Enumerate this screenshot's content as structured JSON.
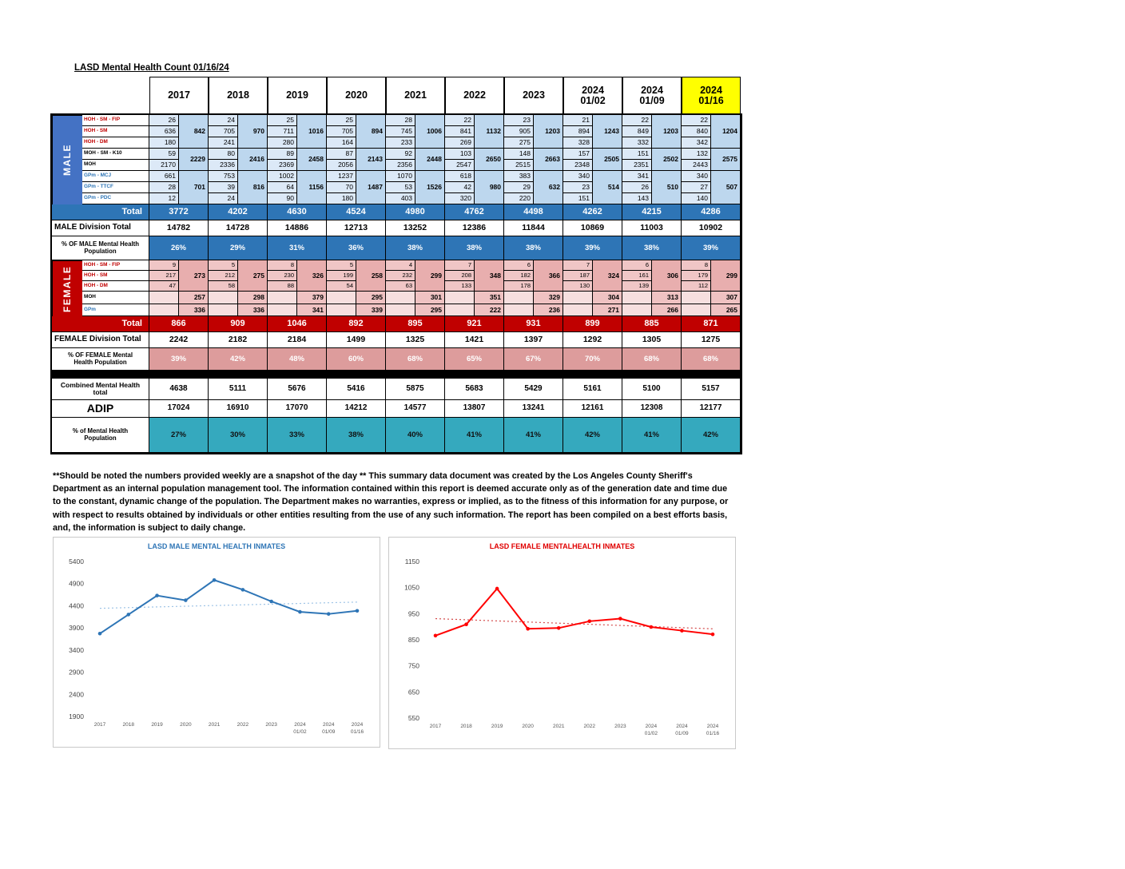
{
  "title": "LASD Mental Health Count 01/16/24",
  "table": {
    "columns": [
      "2017",
      "2018",
      "2019",
      "2020",
      "2021",
      "2022",
      "2023",
      "2024\n01/02",
      "2024\n01/09",
      "2024\n01/16"
    ],
    "highlighted_column": "2024\n01/16",
    "male": {
      "label": "MALE",
      "groups": [
        {
          "rows": [
            {
              "label": "HOH - SM - FIP",
              "values": [
                26,
                24,
                25,
                25,
                28,
                22,
                23,
                21,
                22,
                22
              ]
            },
            {
              "label": "HOH - SM",
              "values": [
                636,
                705,
                711,
                705,
                745,
                841,
                905,
                894,
                849,
                840
              ]
            },
            {
              "label": "HOH - DM",
              "values": [
                180,
                241,
                280,
                164,
                233,
                269,
                275,
                328,
                332,
                342
              ]
            }
          ],
          "subtotals": [
            842,
            970,
            1016,
            894,
            1006,
            1132,
            1203,
            1243,
            1203,
            1204
          ]
        },
        {
          "rows": [
            {
              "label": "MOH - SM - K10",
              "values": [
                59,
                80,
                89,
                87,
                92,
                103,
                148,
                157,
                151,
                132
              ]
            },
            {
              "label": "MOH",
              "values": [
                2170,
                2336,
                2369,
                2056,
                2356,
                2547,
                2515,
                2348,
                2351,
                2443
              ]
            }
          ],
          "subtotals": [
            2229,
            2416,
            2458,
            2143,
            2448,
            2650,
            2663,
            2505,
            2502,
            2575
          ]
        },
        {
          "rows": [
            {
              "label": "GPm - MCJ",
              "values": [
                661,
                753,
                1002,
                1237,
                1070,
                618,
                383,
                340,
                341,
                340
              ]
            },
            {
              "label": "GPm - TTCF",
              "values": [
                28,
                39,
                64,
                70,
                53,
                42,
                29,
                23,
                26,
                27
              ]
            },
            {
              "label": "GPm - PDC",
              "values": [
                12,
                24,
                90,
                180,
                403,
                320,
                220,
                151,
                143,
                140
              ]
            }
          ],
          "subtotals": [
            701,
            816,
            1156,
            1487,
            1526,
            980,
            632,
            514,
            510,
            507
          ]
        }
      ],
      "total": {
        "label": "Total",
        "values": [
          3772,
          4202,
          4630,
          4524,
          4980,
          4762,
          4498,
          4262,
          4215,
          4286
        ]
      },
      "division": {
        "label": "MALE Division Total",
        "values": [
          14782,
          14728,
          14886,
          12713,
          13252,
          12386,
          11844,
          10869,
          11003,
          10902
        ]
      },
      "percent": {
        "label": "% OF MALE Mental Health\nPopulation",
        "values": [
          "26%",
          "29%",
          "31%",
          "36%",
          "38%",
          "38%",
          "38%",
          "39%",
          "38%",
          "39%"
        ]
      }
    },
    "female": {
      "label": "FEMALE",
      "groups": [
        {
          "rows": [
            {
              "label": "HOH - SM - FIP",
              "values": [
                9,
                5,
                8,
                5,
                4,
                7,
                6,
                7,
                6,
                8
              ]
            },
            {
              "label": "HOH - SM",
              "values": [
                217,
                212,
                230,
                199,
                232,
                208,
                182,
                187,
                161,
                179
              ]
            },
            {
              "label": "HOH - DM",
              "values": [
                47,
                58,
                88,
                54,
                63,
                133,
                178,
                130,
                139,
                112
              ]
            }
          ],
          "subtotals": [
            273,
            275,
            326,
            258,
            299,
            348,
            366,
            324,
            306,
            299
          ]
        }
      ],
      "single_rows": [
        {
          "label": "MOH",
          "values": [
            257,
            298,
            379,
            295,
            301,
            351,
            329,
            304,
            313,
            307
          ]
        },
        {
          "label": "GPm",
          "values": [
            336,
            336,
            341,
            339,
            295,
            222,
            236,
            271,
            266,
            265
          ]
        }
      ],
      "total": {
        "label": "Total",
        "values": [
          866,
          909,
          1046,
          892,
          895,
          921,
          931,
          899,
          885,
          871
        ]
      },
      "division": {
        "label": "FEMALE Division Total",
        "values": [
          2242,
          2182,
          2184,
          1499,
          1325,
          1421,
          1397,
          1292,
          1305,
          1275
        ]
      },
      "percent": {
        "label": "% OF FEMALE Mental\nHealth Population",
        "values": [
          "39%",
          "42%",
          "48%",
          "60%",
          "68%",
          "65%",
          "67%",
          "70%",
          "68%",
          "68%"
        ]
      }
    },
    "combined": {
      "rows": [
        {
          "label": "Combined Mental Health\ntotal",
          "values": [
            4638,
            5111,
            5676,
            5416,
            5875,
            5683,
            5429,
            5161,
            5100,
            5157
          ]
        },
        {
          "label": "ADIP",
          "values": [
            17024,
            16910,
            17070,
            14212,
            14577,
            13807,
            13241,
            12161,
            12308,
            12177
          ]
        },
        {
          "label": "% of Mental Health\nPopulation",
          "values": [
            "27%",
            "30%",
            "33%",
            "38%",
            "40%",
            "41%",
            "41%",
            "42%",
            "41%",
            "42%"
          ]
        }
      ]
    }
  },
  "footnote": "**Should be noted the numbers provided weekly are a snapshot of the day ** This summary data document was created by the Los Angeles County Sheriff's Department as an internal population management tool.  The information contained within this report is deemed accurate only as of the generation date and time due to the constant, dynamic change of the population.  The Department makes no warranties, express or implied, as to the fitness of this information for any purpose, or with respect to results obtained by individuals or other entities resulting from the use of any such information.  The report has been compiled on a best efforts basis, and, the information is subject to daily change.",
  "colors": {
    "male_accent": "#4472C4",
    "male_band": "#2E75B6",
    "female_accent": "#C00000",
    "teal_band": "#35A9BE",
    "highlight_yellow": "#FFFF00"
  },
  "chart_data": [
    {
      "type": "line",
      "title": "LASD MALE MENTAL HEALTH INMATES",
      "title_color": "#2E75B6",
      "x": [
        "2017",
        "2018",
        "2019",
        "2020",
        "2021",
        "2022",
        "2023",
        "2024\n01/02",
        "2024\n01/09",
        "2024\n01/16"
      ],
      "values": [
        3772,
        4202,
        4630,
        4524,
        4980,
        4762,
        4498,
        4262,
        4215,
        4286
      ],
      "ylim": [
        1900,
        5400
      ],
      "ytick_step": 500,
      "color": "#2E75B6",
      "trend_color": "#9DC3E6",
      "trendline": true,
      "legend": false,
      "grid": false
    },
    {
      "type": "line",
      "title": "LASD FEMALE MENTALHEALTH INMATES",
      "title_color": "#E00000",
      "x": [
        "2017",
        "2018",
        "2019",
        "2020",
        "2021",
        "2022",
        "2023",
        "2024\n01/02",
        "2024\n01/09",
        "2024\n01/16"
      ],
      "values": [
        866,
        909,
        1046,
        892,
        895,
        921,
        931,
        899,
        885,
        871
      ],
      "ylim": [
        550,
        1150
      ],
      "ytick_step": 100,
      "color": "#FF0000",
      "trend_color": "#D44A4A",
      "trendline": true,
      "legend": false,
      "grid": false
    }
  ]
}
